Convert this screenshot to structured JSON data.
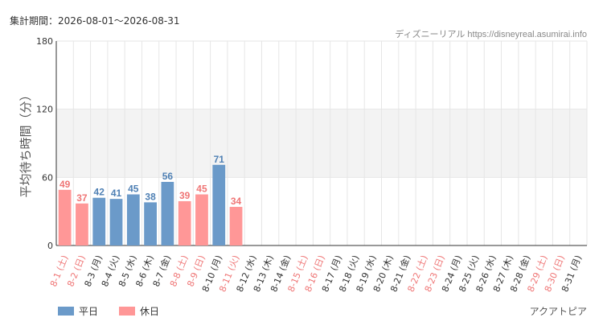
{
  "header": {
    "period_label": "集計期間：2026-08-01～2026-08-31",
    "site_label": "ディズニーリアル https://disneyreal.asumirai.info"
  },
  "footer": {
    "facility_name": "アクアトピア"
  },
  "legend": {
    "weekday_label": "平日",
    "holiday_label": "休日"
  },
  "colors": {
    "weekday": "#6b9ac9",
    "holiday": "#ff9797",
    "weekday_text": "#4f80b4",
    "holiday_text": "#ef7676",
    "band": "#f3f3f3",
    "grid": "#e6e6e6",
    "axis": "#333333"
  },
  "chart_data": {
    "type": "bar",
    "ylabel": "平均待ち時間（分）",
    "ylim": [
      0,
      180
    ],
    "yticks": [
      0,
      60,
      120,
      180
    ],
    "grid": true,
    "legend_position": "bottom-left",
    "categories": [
      "8-1 (土)",
      "8-2 (日)",
      "8-3 (月)",
      "8-4 (火)",
      "8-5 (水)",
      "8-6 (木)",
      "8-7 (金)",
      "8-8 (土)",
      "8-9 (日)",
      "8-10 (月)",
      "8-11 (火)",
      "8-12 (水)",
      "8-13 (木)",
      "8-14 (金)",
      "8-15 (土)",
      "8-16 (日)",
      "8-17 (月)",
      "8-18 (火)",
      "8-19 (水)",
      "8-20 (木)",
      "8-21 (金)",
      "8-22 (土)",
      "8-23 (日)",
      "8-24 (月)",
      "8-25 (火)",
      "8-26 (水)",
      "8-27 (木)",
      "8-28 (金)",
      "8-29 (土)",
      "8-30 (日)",
      "8-31 (月)"
    ],
    "holiday": [
      true,
      true,
      false,
      false,
      false,
      false,
      false,
      true,
      true,
      false,
      true,
      false,
      false,
      false,
      true,
      true,
      false,
      false,
      false,
      false,
      false,
      true,
      true,
      false,
      false,
      false,
      false,
      false,
      true,
      true,
      false
    ],
    "values": [
      49,
      37,
      42,
      41,
      45,
      38,
      56,
      39,
      45,
      71,
      34,
      null,
      null,
      null,
      null,
      null,
      null,
      null,
      null,
      null,
      null,
      null,
      null,
      null,
      null,
      null,
      null,
      null,
      null,
      null,
      null
    ]
  }
}
